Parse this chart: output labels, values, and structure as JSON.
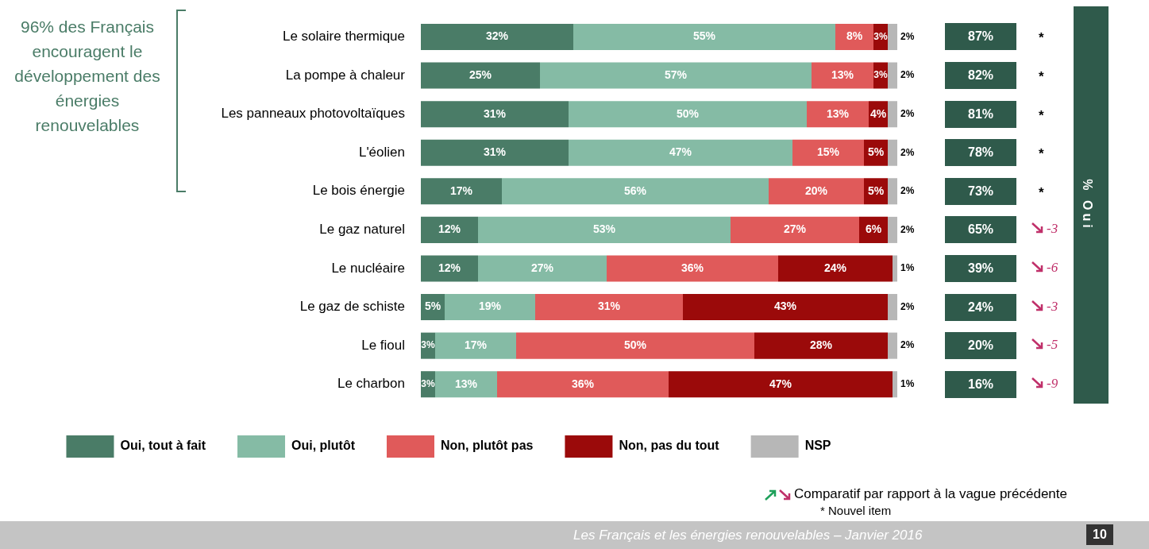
{
  "chart_data": {
    "type": "bar",
    "orientation": "horizontal",
    "stacked": true,
    "grid": false,
    "legend": "bottom",
    "tick_labels": "y",
    "xlim": [
      0,
      100
    ],
    "categories": [
      "Le solaire thermique",
      "La pompe à chaleur",
      "Les panneaux photovoltaïques",
      "L'éolien",
      "Le bois énergie",
      "Le gaz naturel",
      "Le nucléaire",
      "Le gaz de schiste",
      "Le fioul",
      "Le charbon"
    ],
    "series": [
      {
        "name": "Oui, tout à fait",
        "color": "#4a7c67",
        "values": [
          32,
          25,
          31,
          31,
          17,
          12,
          12,
          5,
          3,
          3
        ],
        "value_labels": [
          "32%",
          "25%",
          "31%",
          "31%",
          "17%",
          "12%",
          "12%",
          "5%",
          "3%",
          "3%"
        ]
      },
      {
        "name": "Oui, plutôt",
        "color": "#85bba5",
        "values": [
          55,
          57,
          50,
          47,
          56,
          53,
          27,
          19,
          17,
          13
        ],
        "value_labels": [
          "55%",
          "57%",
          "50%",
          "47%",
          "56%",
          "53%",
          "27%",
          "19%",
          "17%",
          "13%"
        ]
      },
      {
        "name": "Non, plutôt pas",
        "color": "#e05a5a",
        "values": [
          8,
          13,
          13,
          15,
          20,
          27,
          36,
          31,
          50,
          36
        ],
        "value_labels": [
          "8%",
          "13%",
          "13%",
          "15%",
          "20%",
          "27%",
          "36%",
          "31%",
          "50%",
          "36%"
        ]
      },
      {
        "name": "Non, pas du tout",
        "color": "#9b0a0a",
        "values": [
          3,
          3,
          4,
          5,
          5,
          6,
          24,
          43,
          28,
          47
        ],
        "value_labels": [
          "3%",
          "3%",
          "4%",
          "5%",
          "5%",
          "6%",
          "24%",
          "43%",
          "28%",
          "47%"
        ]
      },
      {
        "name": "NSP",
        "color": "#b7b7b7",
        "values": [
          2,
          2,
          2,
          2,
          2,
          2,
          1,
          2,
          2,
          1
        ],
        "value_labels": [
          "2%",
          "2%",
          "2%",
          "2%",
          "2%",
          "2%",
          "1%",
          "2%",
          "2%",
          "1%"
        ]
      }
    ],
    "annotations": [
      "96% des Français encouragent le développement des énergies renouvelables",
      "% Oui",
      "Comparatif par rapport à la vague précédente",
      "* Nouvel item",
      "Les Français et les énergies renouvelables – Janvier 2016",
      "10",
      "87%",
      "82%",
      "81%",
      "78%",
      "73%",
      "65%",
      "39%",
      "24%",
      "20%",
      "16%",
      "*",
      "*",
      "*",
      "*",
      "*",
      "-3",
      "-6",
      "-3",
      "-5",
      "-9"
    ]
  }
}
